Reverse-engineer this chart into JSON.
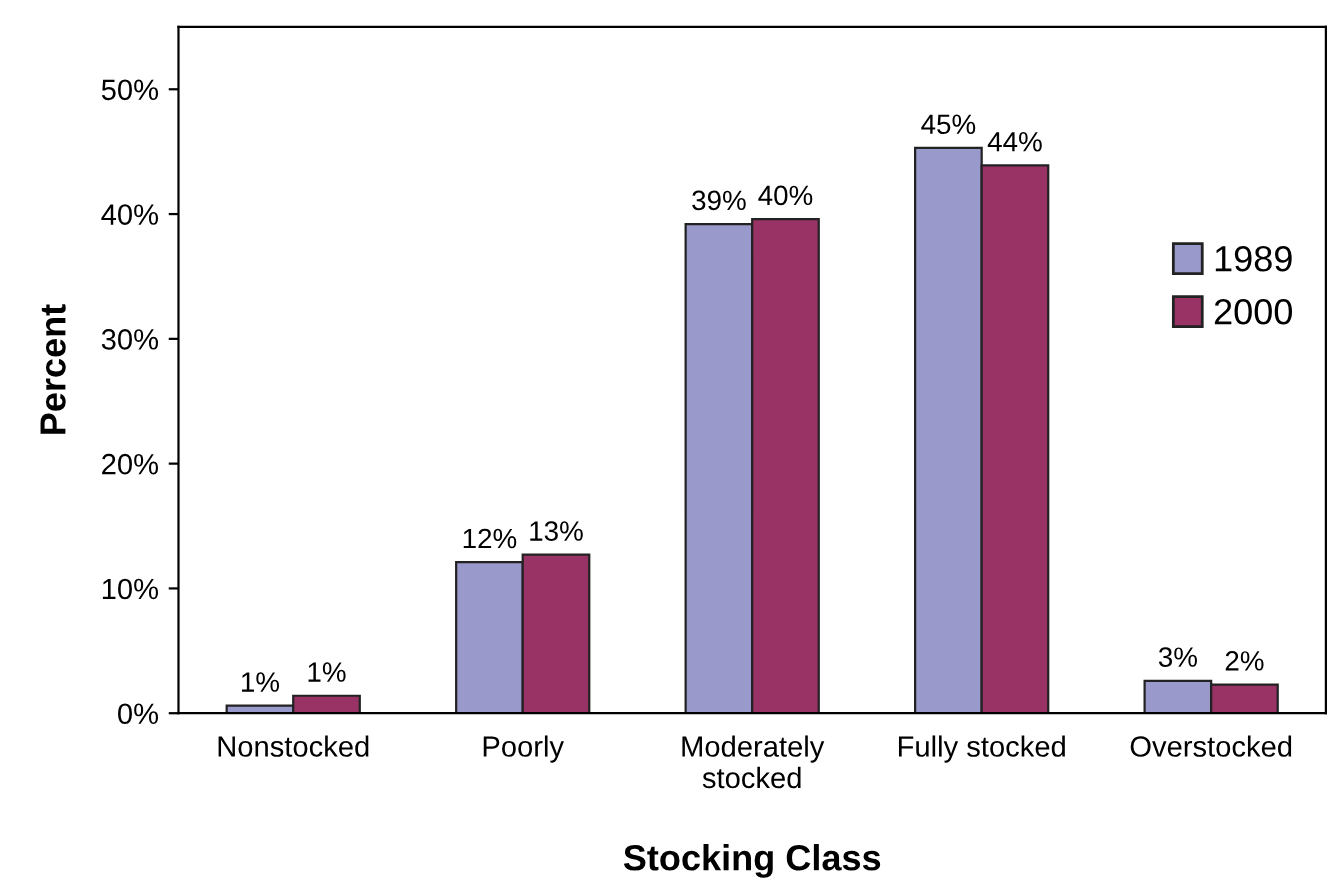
{
  "chart_data": {
    "type": "bar",
    "xlabel": "Stocking Class",
    "ylabel": "Percent",
    "categories": [
      "Nonstocked",
      "Poorly",
      "Moderately\nstocked",
      "Fully stocked",
      "Overstocked"
    ],
    "series": [
      {
        "name": "1989",
        "color": "#9999cc",
        "values": [
          0.6,
          12.1,
          39.2,
          45.3,
          2.6
        ],
        "value_labels": [
          "1%",
          "12%",
          "39%",
          "45%",
          "3%"
        ]
      },
      {
        "name": "2000",
        "color": "#993366",
        "values": [
          1.4,
          12.7,
          39.6,
          43.9,
          2.3
        ],
        "value_labels": [
          "1%",
          "13%",
          "40%",
          "44%",
          "2%"
        ]
      }
    ],
    "ylim": [
      0,
      55
    ],
    "yticks": [
      {
        "value": 0,
        "label": "0%"
      },
      {
        "value": 10,
        "label": "10%"
      },
      {
        "value": 20,
        "label": "20%"
      },
      {
        "value": 30,
        "label": "30%"
      },
      {
        "value": 40,
        "label": "40%"
      },
      {
        "value": 50,
        "label": "50%"
      }
    ],
    "grid": false,
    "legend": "right"
  }
}
